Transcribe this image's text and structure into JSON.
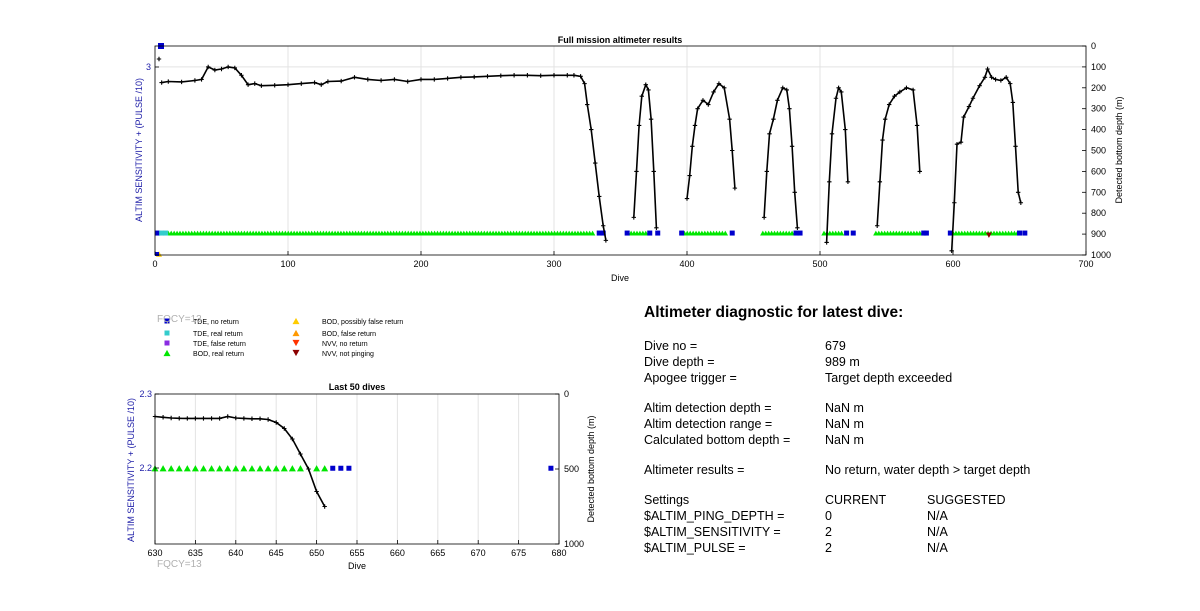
{
  "chart_data": [
    {
      "type": "line",
      "title": "Full mission altimeter results",
      "xlabel": "Dive",
      "ylabel_left": "ALTIM SENSITIVITY + (PULSE /10)",
      "ylabel_right": "Detected bottom depth (m)",
      "xlim": [
        0,
        700
      ],
      "xticks": [
        "0",
        "100",
        "200",
        "300",
        "400",
        "500",
        "600",
        "700"
      ],
      "ylim_right": [
        1000,
        0
      ],
      "yticks_right": [
        "0",
        "100",
        "200",
        "300",
        "400",
        "500",
        "600",
        "700",
        "800",
        "900",
        "1000"
      ],
      "ytick_left": "3",
      "grid": true,
      "series": [
        {
          "marker": "+",
          "color": "#000000",
          "axis": "right",
          "segments": [
            [
              [
                5,
                175
              ],
              [
                10,
                170
              ],
              [
                20,
                172
              ],
              [
                30,
                165
              ],
              [
                35,
                160
              ],
              [
                40,
                100
              ],
              [
                45,
                115
              ],
              [
                50,
                110
              ],
              [
                55,
                100
              ],
              [
                60,
                105
              ],
              [
                65,
                140
              ],
              [
                70,
                185
              ],
              [
                75,
                180
              ],
              [
                80,
                190
              ],
              [
                90,
                188
              ],
              [
                100,
                185
              ],
              [
                110,
                180
              ],
              [
                120,
                175
              ],
              [
                125,
                185
              ],
              [
                130,
                170
              ],
              [
                140,
                168
              ],
              [
                150,
                150
              ],
              [
                160,
                160
              ],
              [
                170,
                165
              ],
              [
                180,
                160
              ],
              [
                190,
                170
              ],
              [
                200,
                160
              ],
              [
                210,
                160
              ],
              [
                220,
                155
              ],
              [
                230,
                150
              ],
              [
                240,
                148
              ],
              [
                250,
                145
              ],
              [
                260,
                142
              ],
              [
                270,
                140
              ],
              [
                280,
                140
              ],
              [
                290,
                142
              ],
              [
                300,
                140
              ],
              [
                310,
                140
              ],
              [
                315,
                140
              ],
              [
                320,
                145
              ],
              [
                323,
                180
              ],
              [
                325,
                280
              ],
              [
                328,
                400
              ],
              [
                331,
                560
              ],
              [
                334,
                720
              ],
              [
                337,
                860
              ],
              [
                339,
                930
              ]
            ],
            [
              [
                360,
                820
              ],
              [
                362,
                600
              ],
              [
                364,
                380
              ],
              [
                366,
                240
              ],
              [
                369,
                185
              ],
              [
                371,
                210
              ],
              [
                373,
                350
              ],
              [
                375,
                600
              ],
              [
                377,
                870
              ]
            ],
            [
              [
                400,
                730
              ],
              [
                402,
                620
              ],
              [
                404,
                480
              ],
              [
                406,
                380
              ],
              [
                408,
                300
              ],
              [
                412,
                260
              ],
              [
                416,
                280
              ],
              [
                420,
                220
              ],
              [
                424,
                180
              ],
              [
                428,
                200
              ],
              [
                432,
                350
              ],
              [
                434,
                500
              ],
              [
                436,
                680
              ]
            ],
            [
              [
                458,
                820
              ],
              [
                460,
                600
              ],
              [
                462,
                420
              ],
              [
                465,
                350
              ],
              [
                468,
                260
              ],
              [
                472,
                200
              ],
              [
                475,
                210
              ],
              [
                477,
                300
              ],
              [
                479,
                480
              ],
              [
                481,
                700
              ],
              [
                483,
                870
              ]
            ],
            [
              [
                505,
                940
              ],
              [
                507,
                650
              ],
              [
                509,
                420
              ],
              [
                512,
                250
              ],
              [
                514,
                200
              ],
              [
                516,
                220
              ],
              [
                519,
                400
              ],
              [
                521,
                650
              ]
            ],
            [
              [
                543,
                860
              ],
              [
                545,
                650
              ],
              [
                547,
                450
              ],
              [
                549,
                350
              ],
              [
                552,
                280
              ],
              [
                556,
                240
              ],
              [
                560,
                220
              ],
              [
                565,
                200
              ],
              [
                570,
                210
              ],
              [
                573,
                380
              ],
              [
                575,
                600
              ]
            ],
            [
              [
                599,
                980
              ],
              [
                601,
                750
              ],
              [
                603,
                470
              ],
              [
                606,
                460
              ],
              [
                608,
                340
              ],
              [
                612,
                290
              ],
              [
                615,
                250
              ],
              [
                620,
                190
              ],
              [
                624,
                150
              ],
              [
                626,
                110
              ],
              [
                629,
                150
              ],
              [
                632,
                160
              ],
              [
                636,
                165
              ],
              [
                640,
                150
              ],
              [
                643,
                180
              ],
              [
                645,
                270
              ],
              [
                647,
                480
              ],
              [
                649,
                700
              ],
              [
                651,
                750
              ]
            ]
          ]
        },
        {
          "name": "BOD, real return",
          "marker": "triangle",
          "color": "#00e600",
          "axis": "right",
          "depth": 895,
          "ranges": [
            [
              10,
              331
            ],
            [
              358,
              372
            ],
            [
              398,
              430
            ],
            [
              457,
              483
            ],
            [
              503,
              518
            ],
            [
              542,
              578
            ],
            [
              600,
              650
            ]
          ]
        },
        {
          "name": "TDE, no return",
          "marker": "square",
          "color": "#0000cc",
          "axis": "right",
          "depth": 895,
          "points": [
            2,
            334,
            337,
            355,
            372,
            378,
            396,
            434,
            482,
            485,
            520,
            525,
            578,
            580,
            598,
            650,
            654
          ]
        },
        {
          "name": "TDE, real return",
          "marker": "square",
          "color": "#33cccc",
          "axis": "right",
          "depth": 895,
          "points": [
            5,
            8
          ]
        },
        {
          "name": "NVV, not pinging",
          "marker": "triangle-down",
          "color": "#8b0000",
          "axis": "right",
          "points": [
            [
              627,
              905
            ]
          ]
        }
      ]
    },
    {
      "type": "line",
      "title": "Last 50 dives",
      "xlabel": "Dive",
      "ylabel_left": "ALTIM SENSITIVITY + (PULSE /10)",
      "ylabel_right": "Detected bottom depth (m)",
      "xlim": [
        630,
        680
      ],
      "xticks": [
        "630",
        "635",
        "640",
        "645",
        "650",
        "655",
        "660",
        "665",
        "670",
        "675",
        "680"
      ],
      "ylim_right": [
        1000,
        0
      ],
      "yticks_right": [
        "0",
        "500",
        "1000"
      ],
      "yticks_left": [
        "2.3",
        "2.2"
      ],
      "grid": true,
      "series": [
        {
          "marker": "+",
          "color": "#000000",
          "axis": "right",
          "points": [
            [
              630,
              150
            ],
            [
              631,
              155
            ],
            [
              632,
              160
            ],
            [
              633,
              162
            ],
            [
              634,
              163
            ],
            [
              635,
              163
            ],
            [
              636,
              163
            ],
            [
              637,
              163
            ],
            [
              638,
              163
            ],
            [
              639,
              150
            ],
            [
              640,
              160
            ],
            [
              641,
              163
            ],
            [
              642,
              165
            ],
            [
              643,
              165
            ],
            [
              644,
              170
            ],
            [
              645,
              190
            ],
            [
              646,
              230
            ],
            [
              647,
              300
            ],
            [
              648,
              400
            ],
            [
              649,
              500
            ],
            [
              650,
              650
            ],
            [
              651,
              750
            ]
          ]
        },
        {
          "name": "BOD, real return",
          "marker": "triangle",
          "color": "#00e600",
          "axis": "right",
          "depth": 495,
          "points": [
            630,
            631,
            632,
            633,
            634,
            635,
            636,
            637,
            638,
            639,
            640,
            641,
            642,
            643,
            644,
            645,
            646,
            647,
            648,
            650,
            651
          ]
        },
        {
          "name": "TDE, no return",
          "marker": "square",
          "color": "#0000cc",
          "axis": "right",
          "depth": 495,
          "points": [
            652,
            653,
            654,
            679
          ]
        }
      ]
    }
  ],
  "fqcy_top": "FQCY=13",
  "fqcy_bottom": "FQCY=13",
  "legend": [
    {
      "label": "TDE, no return",
      "symbol": "square",
      "color": "#0000cc"
    },
    {
      "label": "TDE, real return",
      "symbol": "square",
      "color": "#33cccc"
    },
    {
      "label": "TDE, false return",
      "symbol": "square",
      "color": "#8a2be2"
    },
    {
      "label": "BOD, real return",
      "symbol": "triangle",
      "color": "#00e600"
    },
    {
      "label": "BOD, possibly false return",
      "symbol": "triangle",
      "color": "#ffcc00"
    },
    {
      "label": "BOD, false return",
      "symbol": "triangle",
      "color": "#ff9900"
    },
    {
      "label": "NVV, no return",
      "symbol": "triangle-down",
      "color": "#ff3300"
    },
    {
      "label": "NVV, not pinging",
      "symbol": "triangle-down",
      "color": "#8b0000"
    }
  ],
  "diagnostic": {
    "title": "Altimeter diagnostic for latest dive:",
    "dive_no_label": "Dive no =",
    "dive_no": "679",
    "dive_depth_label": "Dive depth =",
    "dive_depth": "989 m",
    "apogee_label": "Apogee trigger =",
    "apogee": "Target depth exceeded",
    "altim_depth_label": "Altim detection depth =",
    "altim_depth": "NaN m",
    "altim_range_label": "Altim detection range =",
    "altim_range": "NaN m",
    "calc_depth_label": "Calculated bottom depth =",
    "calc_depth": "NaN m",
    "results_label": "Altimeter results =",
    "results": "No return, water depth > target depth",
    "settings_label": "Settings",
    "current_label": "CURRENT",
    "suggested_label": "SUGGESTED",
    "ping_depth_label": "$ALTIM_PING_DEPTH =",
    "ping_depth_current": "0",
    "ping_depth_suggested": "N/A",
    "sensitivity_label": "$ALTIM_SENSITIVITY =",
    "sensitivity_current": "2",
    "sensitivity_suggested": "N/A",
    "pulse_label": "$ALTIM_PULSE =",
    "pulse_current": "2",
    "pulse_suggested": "N/A"
  },
  "colors": {
    "left_axis": "#1f1fa8",
    "fqcy": "#b0b0b0",
    "grid": "#e3e3e3"
  }
}
